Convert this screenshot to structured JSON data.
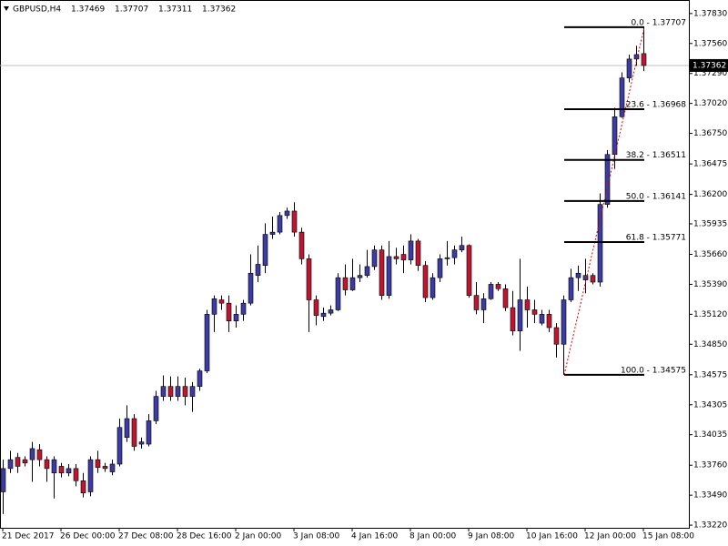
{
  "chart_data": {
    "type": "candlestick",
    "title": "GBPUSD,H4",
    "categories": [
      "21 Dec 2017",
      null,
      null,
      null,
      null,
      null,
      null,
      null,
      "26 Dec 00:00",
      null,
      null,
      null,
      null,
      null,
      null,
      null,
      "27 Dec 08:00",
      null,
      null,
      null,
      null,
      null,
      null,
      null,
      "28 Dec 16:00",
      null,
      null,
      null,
      null,
      null,
      null,
      null,
      "2 Jan 00:00",
      null,
      null,
      null,
      null,
      null,
      null,
      null,
      "3 Jan 08:00",
      null,
      null,
      null,
      null,
      null,
      null,
      null,
      "4 Jan 16:00",
      null,
      null,
      null,
      null,
      null,
      null,
      null,
      "8 Jan 00:00",
      null,
      null,
      null,
      null,
      null,
      null,
      null,
      "9 Jan 08:00",
      null,
      null,
      null,
      null,
      null,
      null,
      null,
      "10 Jan 16:00",
      null,
      null,
      null,
      null,
      null,
      null,
      null,
      "12 Jan 00:00",
      null,
      null,
      null,
      null,
      null,
      null,
      null,
      "15 Jan 08:00"
    ],
    "open": [
      1.3352,
      1.3373,
      1.3383,
      1.3381,
      1.3381,
      1.339,
      1.3381,
      1.3369,
      1.3375,
      1.3369,
      1.3373,
      1.3362,
      1.3352,
      1.3381,
      1.3375,
      1.337,
      1.3377,
      1.3401,
      1.3418,
      1.3395,
      1.3395,
      1.3416,
      1.3438,
      1.3447,
      1.3438,
      1.3447,
      1.3438,
      1.3447,
      1.3461,
      1.3512,
      1.3525,
      1.3522,
      1.3506,
      1.3512,
      1.3522,
      1.3547,
      1.3556,
      1.3584,
      1.3586,
      1.3601,
      1.3605,
      1.3586,
      1.3562,
      1.3525,
      1.351,
      1.3513,
      1.3516,
      1.3545,
      1.3534,
      1.3545,
      1.3547,
      1.3555,
      1.357,
      1.3529,
      1.3564,
      1.3566,
      1.3561,
      1.3578,
      1.3556,
      1.3527,
      1.3545,
      1.3562,
      1.3563,
      1.357,
      1.3574,
      1.3529,
      1.3516,
      1.3526,
      1.3539,
      1.3535,
      1.3518,
      1.3497,
      1.3525,
      1.3516,
      1.3504,
      1.3512,
      1.35,
      1.3485,
      1.3525,
      1.3545,
      1.3543,
      1.3547,
      1.3541,
      1.3611,
      1.3656,
      1.369,
      1.3725,
      1.3742,
      1.37469
    ],
    "high": [
      1.3381,
      1.3389,
      1.3387,
      1.3384,
      1.3397,
      1.3395,
      1.3384,
      1.3384,
      1.3378,
      1.3377,
      1.3377,
      1.3369,
      1.3384,
      1.3389,
      1.3378,
      1.3381,
      1.3418,
      1.343,
      1.3422,
      1.3401,
      1.3422,
      1.3443,
      1.3457,
      1.3456,
      1.3456,
      1.3455,
      1.3451,
      1.3463,
      1.3516,
      1.3529,
      1.3529,
      1.3529,
      1.352,
      1.3525,
      1.3566,
      1.3574,
      1.3594,
      1.36,
      1.3604,
      1.3608,
      1.3613,
      1.359,
      1.3566,
      1.3529,
      1.3518,
      1.352,
      1.3549,
      1.3557,
      1.3562,
      1.3557,
      1.357,
      1.3574,
      1.3574,
      1.3578,
      1.3572,
      1.3574,
      1.3584,
      1.358,
      1.356,
      1.3549,
      1.3566,
      1.3578,
      1.3574,
      1.3582,
      1.3575,
      1.3541,
      1.3531,
      1.3541,
      1.3541,
      1.3539,
      1.3533,
      1.3562,
      1.3537,
      1.3525,
      1.3516,
      1.3516,
      1.3504,
      1.3529,
      1.3553,
      1.3556,
      1.3562,
      1.3549,
      1.3621,
      1.366,
      1.3698,
      1.373,
      1.3746,
      1.3754,
      1.37707
    ],
    "low": [
      1.3332,
      1.3369,
      1.3369,
      1.3375,
      1.3361,
      1.3375,
      1.3361,
      1.3346,
      1.3365,
      1.3366,
      1.3357,
      1.3347,
      1.3348,
      1.3369,
      1.337,
      1.3367,
      1.3375,
      1.3397,
      1.3389,
      1.3391,
      1.3393,
      1.3413,
      1.3434,
      1.3434,
      1.3434,
      1.343,
      1.3424,
      1.3443,
      1.3459,
      1.3496,
      1.3516,
      1.3496,
      1.35,
      1.3506,
      1.352,
      1.3541,
      1.3549,
      1.358,
      1.3584,
      1.3598,
      1.3582,
      1.3557,
      1.3496,
      1.3502,
      1.3506,
      1.3511,
      1.3515,
      1.3529,
      1.3533,
      1.3541,
      1.3545,
      1.3552,
      1.3525,
      1.3526,
      1.3557,
      1.3549,
      1.3557,
      1.3551,
      1.3523,
      1.3525,
      1.3541,
      1.3556,
      1.3557,
      1.3568,
      1.3527,
      1.3512,
      1.3504,
      1.3525,
      1.3533,
      1.3515,
      1.3493,
      1.3479,
      1.35,
      1.3504,
      1.3502,
      1.3496,
      1.3473,
      1.34575,
      1.3523,
      1.3533,
      1.3531,
      1.3539,
      1.3537,
      1.3608,
      1.3643,
      1.3689,
      1.3721,
      1.3736,
      1.37311
    ],
    "close": [
      1.3373,
      1.3381,
      1.3375,
      1.3378,
      1.3391,
      1.3381,
      1.3373,
      1.3381,
      1.3369,
      1.3373,
      1.3362,
      1.3351,
      1.3381,
      1.3374,
      1.3373,
      1.3377,
      1.341,
      1.3418,
      1.3393,
      1.3397,
      1.3416,
      1.3438,
      1.3447,
      1.3438,
      1.3447,
      1.3438,
      1.3447,
      1.3461,
      1.3512,
      1.3526,
      1.3522,
      1.3506,
      1.3512,
      1.3522,
      1.3549,
      1.3557,
      1.3584,
      1.3586,
      1.3601,
      1.3605,
      1.3586,
      1.3562,
      1.3525,
      1.3511,
      1.3513,
      1.3516,
      1.3545,
      1.3534,
      1.3545,
      1.3547,
      1.3555,
      1.357,
      1.3529,
      1.3564,
      1.3562,
      1.3561,
      1.3578,
      1.3556,
      1.3527,
      1.3545,
      1.3562,
      1.3563,
      1.357,
      1.3574,
      1.3529,
      1.3516,
      1.3526,
      1.3539,
      1.3535,
      1.3518,
      1.3497,
      1.3525,
      1.3516,
      1.3512,
      1.3512,
      1.35,
      1.3485,
      1.3525,
      1.3545,
      1.3549,
      1.3547,
      1.3541,
      1.3611,
      1.3656,
      1.369,
      1.3725,
      1.3742,
      1.3746,
      1.37362
    ],
    "up_color": "#3a3aa8",
    "down_color": "#c4122f",
    "ylim": [
      1.33196,
      1.37952
    ],
    "yticks": [
      {
        "value": 1.3783,
        "label": "1.37830"
      },
      {
        "value": 1.3756,
        "label": "1.37560"
      },
      {
        "value": 1.3729,
        "label": "1.37290"
      },
      {
        "value": 1.3702,
        "label": "1.37020"
      },
      {
        "value": 1.3675,
        "label": "1.36750"
      },
      1.36475,
      {
        "value": 1.362,
        "label": "1.36200"
      },
      1.35935,
      {
        "value": 1.3566,
        "label": "1.35660"
      },
      {
        "value": 1.3539,
        "label": "1.35390"
      },
      {
        "value": 1.3512,
        "label": "1.35120"
      },
      {
        "value": 1.3485,
        "label": "1.34850"
      },
      1.34575,
      1.34305,
      1.34035,
      {
        "value": 1.3376,
        "label": "1.33760"
      },
      {
        "value": 1.3349,
        "label": "1.33490"
      },
      {
        "value": 1.3322,
        "label": "1.33220"
      }
    ],
    "fib_levels": [
      {
        "label": "0.0 - 1.37707",
        "price": 1.37707
      },
      {
        "label": "23.6 - 1.36968",
        "price": 1.36968
      },
      {
        "label": "38.2 - 1.36511",
        "price": 1.36511
      },
      {
        "label": "50.0 - 1.36141",
        "price": 1.36141
      },
      {
        "label": "61.8 - 1.35771",
        "price": 1.35771
      },
      {
        "label": "100.0 - 1.34575",
        "price": 1.34575
      }
    ],
    "fib_line_color": "#000000",
    "fib_trend_color": "#e00000",
    "price_line_color": "#c0c0c0"
  }
}
